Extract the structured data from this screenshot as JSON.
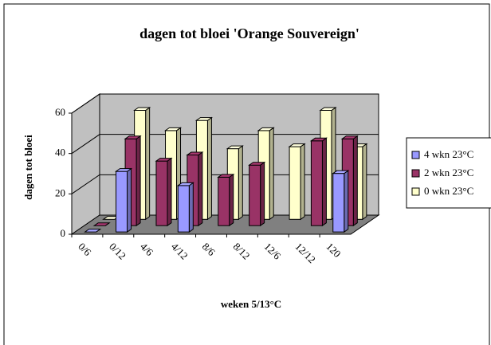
{
  "chart_data": {
    "type": "bar3d",
    "title": "dagen tot bloei 'Orange Souvereign'",
    "x_label": "weken 5/13°C",
    "y_label": "dagen tot bloei",
    "categories": [
      "0/6",
      "0/12",
      "4/6",
      "4/12",
      "8/6",
      "8/12",
      "12/6",
      "12/12",
      "120"
    ],
    "series": [
      {
        "name": "4 wkn 23°C",
        "color": "#9999ff",
        "values": [
          0,
          30,
          null,
          23,
          null,
          null,
          null,
          null,
          29
        ]
      },
      {
        "name": "2 wkn 23°C",
        "color": "#993366",
        "values": [
          0,
          43,
          32,
          35,
          24,
          30,
          null,
          42,
          43
        ]
      },
      {
        "name": "0 wkn 23°C",
        "color": "#ffffcc",
        "values": [
          0,
          54,
          44,
          49,
          35,
          44,
          36,
          54,
          36
        ]
      }
    ],
    "ylim": [
      0,
      60
    ],
    "yticks": [
      0,
      20,
      40,
      60
    ],
    "grid": true,
    "legend": "right"
  }
}
